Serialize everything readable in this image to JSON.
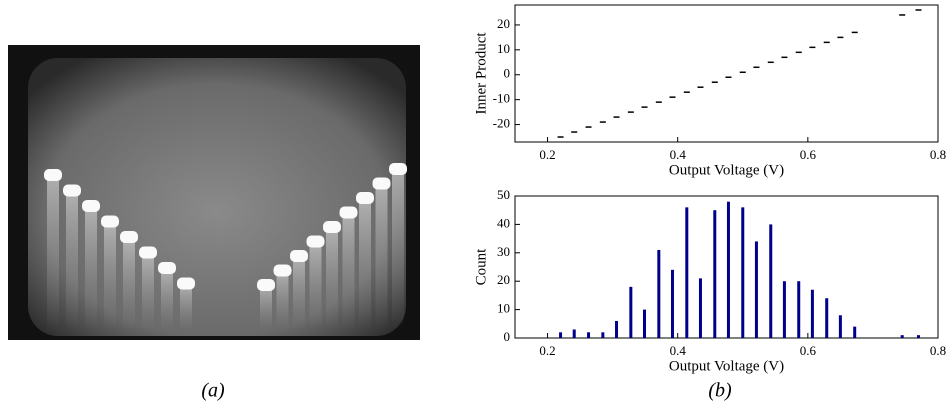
{
  "figure": {
    "captions": [
      "(a)",
      "(b)"
    ]
  },
  "chart_data": [
    {
      "type": "scatter",
      "ylabel": "Inner Product",
      "xlabel": "Output Voltage (V)",
      "color": "#000000",
      "x": [
        0.22,
        0.241,
        0.263,
        0.285,
        0.306,
        0.328,
        0.349,
        0.371,
        0.392,
        0.414,
        0.435,
        0.457,
        0.478,
        0.5,
        0.521,
        0.543,
        0.564,
        0.586,
        0.607,
        0.629,
        0.65,
        0.672,
        0.745,
        0.77
      ],
      "values": [
        -25,
        -23,
        -21,
        -19,
        -17,
        -15,
        -13,
        -11,
        -9,
        -7,
        -5,
        -3,
        -1,
        1,
        3,
        5,
        7,
        9,
        11,
        13,
        15,
        17,
        24,
        26
      ],
      "xlim": [
        0.15,
        0.8
      ],
      "xticks": [
        0.2,
        0.4,
        0.6,
        0.8
      ],
      "ylim": [
        -27,
        28
      ],
      "yticks": [
        -20,
        -10,
        0,
        10,
        20
      ]
    },
    {
      "type": "bar",
      "ylabel": "Count",
      "xlabel": "Output Voltage (V)",
      "color": "#00008b",
      "x": [
        0.22,
        0.241,
        0.263,
        0.285,
        0.306,
        0.328,
        0.349,
        0.371,
        0.392,
        0.414,
        0.435,
        0.457,
        0.478,
        0.5,
        0.521,
        0.543,
        0.564,
        0.586,
        0.607,
        0.629,
        0.65,
        0.672,
        0.745,
        0.77
      ],
      "values": [
        2,
        3,
        2,
        2,
        6,
        18,
        10,
        31,
        24,
        46,
        21,
        45,
        48,
        46,
        34,
        40,
        20,
        20,
        17,
        14,
        8,
        4,
        1,
        1
      ],
      "xlim": [
        0.15,
        0.8
      ],
      "xticks": [
        0.2,
        0.4,
        0.6,
        0.8
      ],
      "ylim": [
        0,
        50
      ],
      "yticks": [
        0,
        10,
        20,
        30,
        40,
        50
      ]
    }
  ]
}
